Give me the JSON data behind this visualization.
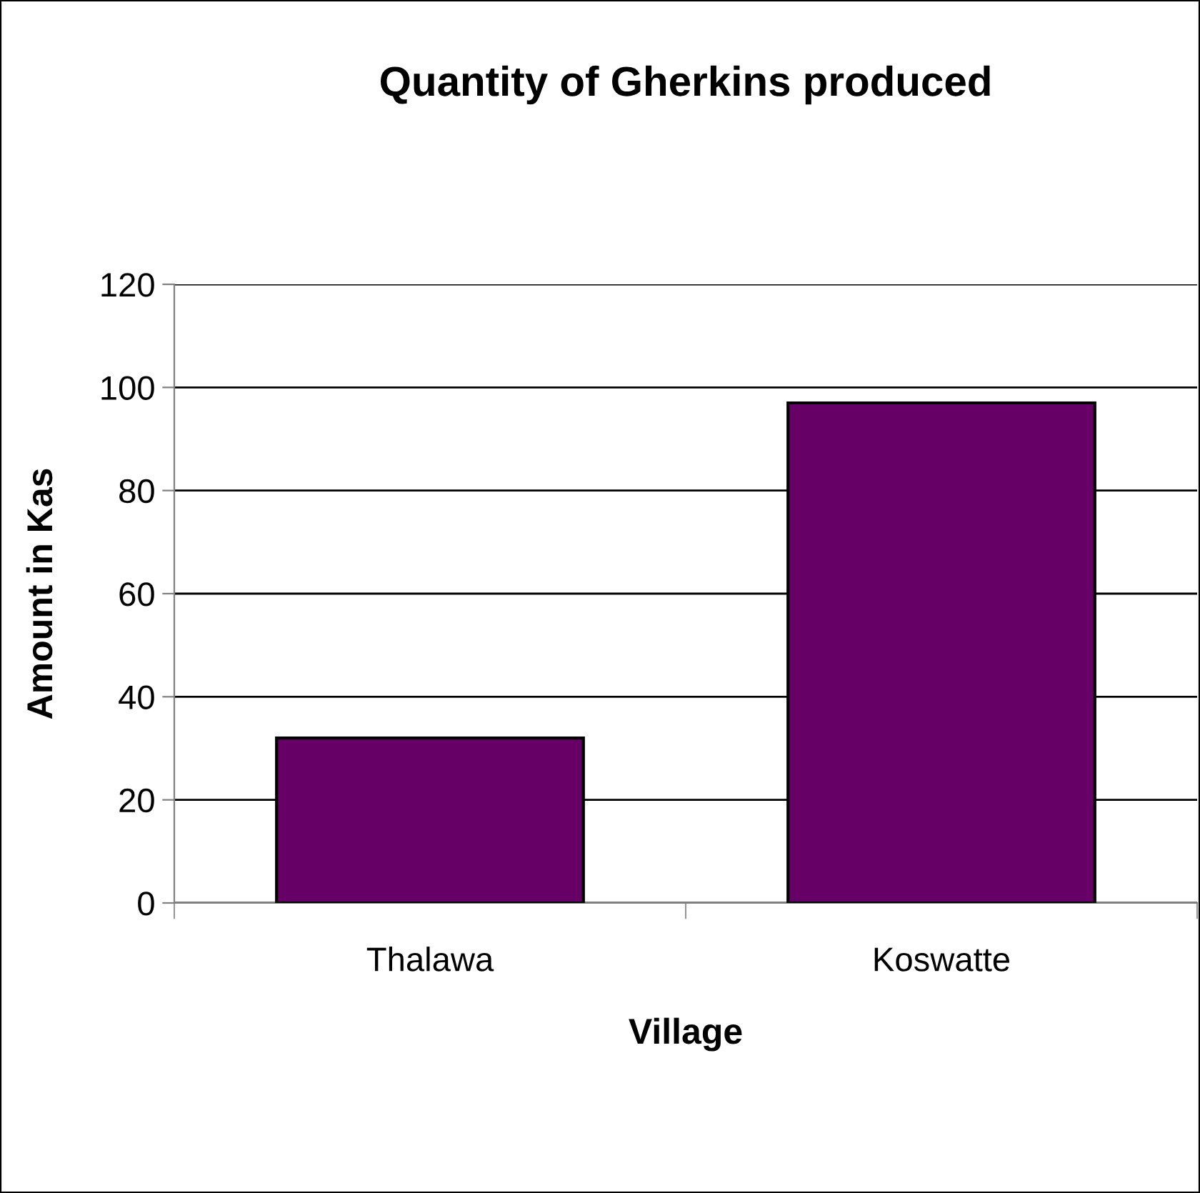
{
  "chart_data": {
    "type": "bar",
    "title": "Quantity of Gherkins produced",
    "xlabel": "Village",
    "ylabel": "Amount in Kas",
    "categories": [
      "Thalawa",
      "Koswatte"
    ],
    "series": [
      {
        "color": "#660066",
        "values": [
          32,
          97
        ]
      }
    ],
    "ylim": [
      0,
      120
    ],
    "yticks": [
      0,
      20,
      40,
      60,
      80,
      100,
      120
    ],
    "grid": "y",
    "legend": false
  }
}
